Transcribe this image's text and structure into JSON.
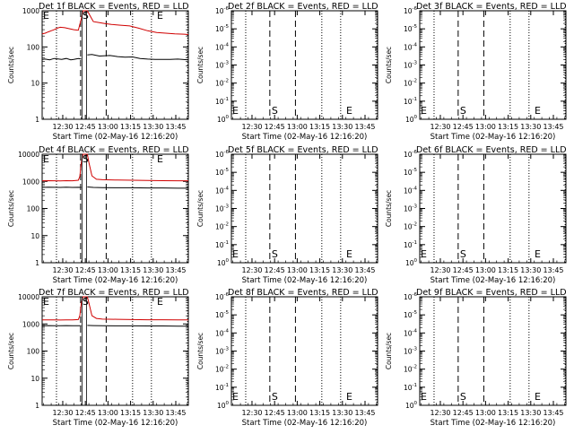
{
  "chart_data": [
    {
      "type": "line",
      "title": "Det 1f BLACK = Events, RED = LLD",
      "xlabel": "Start Time (02-May-16 12:16:20)",
      "ylabel": "Counts/sec",
      "xticks": [
        "12:30",
        "12:45",
        "13:00",
        "13:15",
        "13:30",
        "13:45"
      ],
      "xlim_minutes": [
        0,
        97
      ],
      "ylim": [
        1,
        1000
      ],
      "yscale": "log",
      "yticks": [
        "1",
        "10",
        "100",
        "1000"
      ],
      "markers": {
        "S": 25.5,
        "E": 75
      },
      "series": [
        {
          "name": "Events",
          "color": "#000000",
          "x": [
            0,
            2,
            5,
            8,
            10,
            13,
            16,
            19,
            21,
            24,
            26,
            26.5,
            27,
            29,
            30,
            33,
            38,
            45,
            50,
            55,
            60,
            65,
            70,
            75,
            80,
            85,
            90,
            97
          ],
          "y": [
            45,
            46,
            44,
            48,
            47,
            45,
            48,
            44,
            45,
            48,
            46,
            null,
            null,
            null,
            60,
            62,
            56,
            58,
            54,
            52,
            53,
            48,
            46,
            45,
            45,
            45,
            46,
            44
          ]
        },
        {
          "name": "LLD",
          "color": "#d00000",
          "x": [
            0,
            2,
            4,
            6,
            8,
            10,
            12,
            15,
            18,
            21,
            24,
            26,
            27,
            28,
            29,
            30,
            32,
            34,
            38,
            42,
            46,
            52,
            58,
            64,
            70,
            76,
            82,
            88,
            94,
            97
          ],
          "y": [
            230,
            240,
            260,
            280,
            300,
            330,
            350,
            340,
            320,
            300,
            290,
            600,
            1200,
            1200,
            1200,
            1200,
            700,
            500,
            470,
            440,
            420,
            400,
            380,
            330,
            280,
            250,
            240,
            230,
            225,
            220
          ]
        }
      ]
    },
    {
      "type": "line",
      "title": "Det 2f BLACK = Events, RED = LLD",
      "xlabel": "Start Time (02-May-16 12:16:20)",
      "ylabel": "Counts/sec",
      "xticks": [
        "12:30",
        "12:45",
        "13:00",
        "13:15",
        "13:30",
        "13:45"
      ],
      "xlim_minutes": [
        0,
        97
      ],
      "ylim": [
        1,
        1e-06
      ],
      "yscale": "log",
      "yticks": [
        "10^0",
        "10^-1",
        "10^-2",
        "10^-3",
        "10^-4",
        "10^-5",
        "10^-6"
      ],
      "markers": {
        "S": 25.5,
        "E": 75
      },
      "series": []
    },
    {
      "type": "line",
      "title": "Det 3f BLACK = Events, RED = LLD",
      "xlabel": "Start Time (02-May-16 12:16:20)",
      "ylabel": "Counts/sec",
      "xticks": [
        "12:30",
        "12:45",
        "13:00",
        "13:15",
        "13:30",
        "13:45"
      ],
      "xlim_minutes": [
        0,
        97
      ],
      "ylim": [
        1,
        1e-06
      ],
      "yscale": "log",
      "yticks": [
        "10^0",
        "10^-1",
        "10^-2",
        "10^-3",
        "10^-4",
        "10^-5",
        "10^-6"
      ],
      "markers": {
        "S": 25.5,
        "E": 75
      },
      "series": []
    },
    {
      "type": "line",
      "title": "Det 4f BLACK = Events, RED = LLD",
      "xlabel": "Start Time (02-May-16 12:16:20)",
      "ylabel": "Counts/sec",
      "xticks": [
        "12:30",
        "12:45",
        "13:00",
        "13:15",
        "13:30",
        "13:45"
      ],
      "xlim_minutes": [
        0,
        97
      ],
      "ylim": [
        1,
        10000
      ],
      "yscale": "log",
      "yticks": [
        "1",
        "10",
        "100",
        "1000",
        "10000"
      ],
      "markers": {
        "S": 25.5,
        "E": 75
      },
      "series": [
        {
          "name": "Events",
          "color": "#000000",
          "x": [
            0,
            4,
            8,
            12,
            16,
            20,
            24,
            26,
            27,
            28,
            29,
            30,
            34,
            40,
            50,
            60,
            70,
            80,
            90,
            97
          ],
          "y": [
            600,
            610,
            605,
            600,
            610,
            600,
            605,
            600,
            null,
            null,
            null,
            620,
            600,
            590,
            580,
            580,
            570,
            570,
            560,
            560
          ]
        },
        {
          "name": "LLD",
          "color": "#d00000",
          "x": [
            0,
            4,
            8,
            12,
            16,
            20,
            24,
            25,
            26,
            27,
            28,
            29,
            30,
            31,
            33,
            36,
            40,
            50,
            60,
            70,
            80,
            90,
            97
          ],
          "y": [
            1050,
            1060,
            1050,
            1040,
            1060,
            1050,
            1100,
            1500,
            5000,
            14000,
            14000,
            14000,
            14000,
            5000,
            1600,
            1200,
            1150,
            1120,
            1100,
            1080,
            1060,
            1050,
            1050
          ]
        }
      ]
    },
    {
      "type": "line",
      "title": "Det 5f BLACK = Events, RED = LLD",
      "xlabel": "Start Time (02-May-16 12:16:20)",
      "ylabel": "Counts/sec",
      "xticks": [
        "12:30",
        "12:45",
        "13:00",
        "13:15",
        "13:30",
        "13:45"
      ],
      "xlim_minutes": [
        0,
        97
      ],
      "ylim": [
        1,
        1e-06
      ],
      "yscale": "log",
      "yticks": [
        "10^0",
        "10^-1",
        "10^-2",
        "10^-3",
        "10^-4",
        "10^-5",
        "10^-6"
      ],
      "markers": {
        "S": 25.5,
        "E": 75
      },
      "series": []
    },
    {
      "type": "line",
      "title": "Det 6f BLACK = Events, RED = LLD",
      "xlabel": "Start Time (02-May-16 12:16:20)",
      "ylabel": "Counts/sec",
      "xticks": [
        "12:30",
        "12:45",
        "13:00",
        "13:15",
        "13:30",
        "13:45"
      ],
      "xlim_minutes": [
        0,
        97
      ],
      "ylim": [
        1,
        1e-06
      ],
      "yscale": "log",
      "yticks": [
        "10^0",
        "10^-1",
        "10^-2",
        "10^-3",
        "10^-4",
        "10^-5",
        "10^-6"
      ],
      "markers": {
        "S": 25.5,
        "E": 75
      },
      "series": []
    },
    {
      "type": "line",
      "title": "Det 7f BLACK = Events, RED = LLD",
      "xlabel": "Start Time (02-May-16 12:16:20)",
      "ylabel": "Counts/sec",
      "xticks": [
        "12:30",
        "12:45",
        "13:00",
        "13:15",
        "13:30",
        "13:45"
      ],
      "xlim_minutes": [
        0,
        97
      ],
      "ylim": [
        1,
        10000
      ],
      "yscale": "log",
      "yticks": [
        "1",
        "10",
        "100",
        "1000",
        "10000"
      ],
      "markers": {
        "S": 25.5,
        "E": 75
      },
      "series": [
        {
          "name": "Events",
          "color": "#000000",
          "x": [
            0,
            4,
            8,
            12,
            16,
            20,
            24,
            26,
            27,
            28,
            29,
            30,
            34,
            40,
            50,
            60,
            70,
            80,
            90,
            97
          ],
          "y": [
            860,
            870,
            865,
            860,
            870,
            860,
            865,
            860,
            null,
            null,
            null,
            880,
            870,
            860,
            850,
            850,
            840,
            840,
            830,
            830
          ]
        },
        {
          "name": "LLD",
          "color": "#d00000",
          "x": [
            0,
            4,
            8,
            12,
            16,
            20,
            24,
            25,
            26,
            27,
            28,
            29,
            30,
            31,
            33,
            36,
            40,
            50,
            60,
            70,
            80,
            90,
            97
          ],
          "y": [
            1400,
            1410,
            1400,
            1390,
            1410,
            1400,
            1450,
            2000,
            6000,
            14000,
            14000,
            14000,
            14000,
            6000,
            2000,
            1600,
            1500,
            1480,
            1450,
            1430,
            1420,
            1400,
            1400
          ]
        }
      ]
    },
    {
      "type": "line",
      "title": "Det 8f BLACK = Events, RED = LLD",
      "xlabel": "Start Time (02-May-16 12:16:20)",
      "ylabel": "Counts/sec",
      "xticks": [
        "12:30",
        "12:45",
        "13:00",
        "13:15",
        "13:30",
        "13:45"
      ],
      "xlim_minutes": [
        0,
        97
      ],
      "ylim": [
        1,
        1e-06
      ],
      "yscale": "log",
      "yticks": [
        "10^0",
        "10^-1",
        "10^-2",
        "10^-3",
        "10^-4",
        "10^-5",
        "10^-6"
      ],
      "markers": {
        "S": 25.5,
        "E": 75
      },
      "series": []
    },
    {
      "type": "line",
      "title": "Det 9f BLACK = Events, RED = LLD",
      "xlabel": "Start Time (02-May-16 12:16:20)",
      "ylabel": "Counts/sec",
      "xticks": [
        "12:30",
        "12:45",
        "13:00",
        "13:15",
        "13:30",
        "13:45"
      ],
      "xlim_minutes": [
        0,
        97
      ],
      "ylim": [
        1,
        1e-06
      ],
      "yscale": "log",
      "yticks": [
        "10^0",
        "10^-1",
        "10^-2",
        "10^-3",
        "10^-4",
        "10^-5",
        "10^-6"
      ],
      "markers": {
        "S": 25.5,
        "E": 75
      },
      "series": []
    }
  ]
}
